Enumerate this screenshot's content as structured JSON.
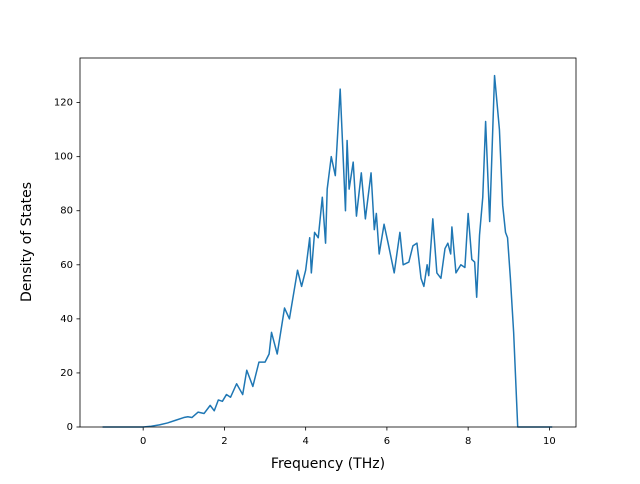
{
  "chart_data": {
    "type": "line",
    "xlabel": "Frequency (THz)",
    "ylabel": "Density of States",
    "color": "#1f77b4",
    "x": [
      -1.0,
      0.0,
      0.2,
      0.4,
      0.6,
      0.8,
      1.0,
      1.1,
      1.2,
      1.35,
      1.5,
      1.65,
      1.75,
      1.85,
      1.95,
      2.05,
      2.15,
      2.3,
      2.45,
      2.55,
      2.7,
      2.85,
      3.0,
      3.1,
      3.16,
      3.3,
      3.48,
      3.6,
      3.8,
      3.9,
      4.0,
      4.1,
      4.14,
      4.22,
      4.31,
      4.41,
      4.49,
      4.53,
      4.63,
      4.73,
      4.85,
      4.98,
      5.02,
      5.07,
      5.17,
      5.25,
      5.37,
      5.47,
      5.61,
      5.69,
      5.74,
      5.81,
      5.93,
      6.03,
      6.18,
      6.32,
      6.4,
      6.54,
      6.64,
      6.74,
      6.84,
      6.91,
      6.99,
      7.03,
      7.13,
      7.23,
      7.33,
      7.43,
      7.5,
      7.57,
      7.6,
      7.7,
      7.82,
      7.92,
      8.0,
      8.09,
      8.16,
      8.21,
      8.28,
      8.36,
      8.43,
      8.53,
      8.65,
      8.77,
      8.85,
      8.92,
      8.97,
      9.04,
      9.12,
      9.22,
      10.07
    ],
    "values": [
      0,
      0,
      0.3,
      0.8,
      1.5,
      2.5,
      3.5,
      3.8,
      3.5,
      5.5,
      5,
      8,
      6,
      10,
      9.5,
      12,
      11,
      16,
      12,
      21,
      15,
      24,
      24,
      27,
      35,
      27,
      44,
      40,
      58,
      52,
      58,
      70,
      57,
      72,
      70,
      85,
      68,
      88,
      100,
      93,
      125,
      80,
      106,
      88,
      98,
      78,
      94,
      77,
      94,
      73,
      79,
      64,
      75,
      68,
      57,
      72,
      60,
      61,
      67,
      68,
      55,
      52,
      60,
      56,
      77,
      57,
      55,
      66,
      68,
      64,
      74,
      57,
      60,
      59,
      79,
      62,
      61,
      48,
      71,
      85,
      113,
      76,
      130,
      110,
      82,
      72,
      70,
      55,
      35,
      0,
      0
    ],
    "xlim": [
      -1.555,
      10.655
    ],
    "ylim": [
      0,
      136.5
    ],
    "xticks": [
      0,
      2,
      4,
      6,
      8,
      10
    ],
    "yticks": [
      0,
      20,
      40,
      60,
      80,
      100,
      120
    ]
  }
}
